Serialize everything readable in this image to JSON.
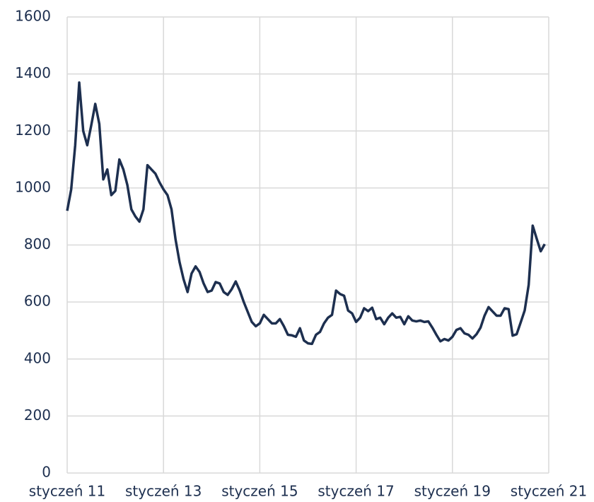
{
  "chart_data": {
    "type": "line",
    "categories": [
      "styczeń 11",
      null,
      null,
      null,
      null,
      null,
      null,
      null,
      null,
      null,
      null,
      null,
      null,
      null,
      null,
      null,
      null,
      null,
      null,
      null,
      null,
      null,
      null,
      null,
      "styczeń 13",
      null,
      null,
      null,
      null,
      null,
      null,
      null,
      null,
      null,
      null,
      null,
      null,
      null,
      null,
      null,
      null,
      null,
      null,
      null,
      null,
      null,
      null,
      null,
      "styczeń 15",
      null,
      null,
      null,
      null,
      null,
      null,
      null,
      null,
      null,
      null,
      null,
      null,
      null,
      null,
      null,
      null,
      null,
      null,
      null,
      null,
      null,
      null,
      null,
      "styczeń 17",
      null,
      null,
      null,
      null,
      null,
      null,
      null,
      null,
      null,
      null,
      null,
      null,
      null,
      null,
      null,
      null,
      null,
      null,
      null,
      null,
      null,
      null,
      null,
      "styczeń 19",
      null,
      null,
      null,
      null,
      null,
      null,
      null,
      null,
      null,
      null,
      null,
      null,
      null,
      null,
      null,
      null,
      null,
      null,
      null,
      null,
      null,
      null,
      null,
      "styczeń 21"
    ],
    "values": [
      920,
      995,
      1150,
      1370,
      1200,
      1150,
      1220,
      1295,
      1225,
      1030,
      1065,
      975,
      990,
      1100,
      1065,
      1010,
      925,
      900,
      882,
      925,
      1080,
      1065,
      1050,
      1020,
      995,
      975,
      925,
      820,
      740,
      680,
      635,
      700,
      725,
      705,
      665,
      635,
      640,
      670,
      665,
      635,
      625,
      645,
      672,
      640,
      600,
      565,
      530,
      515,
      525,
      555,
      540,
      525,
      525,
      540,
      515,
      485,
      483,
      478,
      508,
      465,
      455,
      453,
      485,
      495,
      525,
      545,
      555,
      640,
      628,
      622,
      570,
      560,
      530,
      545,
      578,
      568,
      580,
      540,
      545,
      522,
      545,
      560,
      545,
      548,
      522,
      550,
      535,
      532,
      535,
      530,
      532,
      510,
      485,
      462,
      470,
      465,
      478,
      502,
      508,
      490,
      485,
      472,
      487,
      510,
      552,
      582,
      567,
      552,
      552,
      578,
      575,
      482,
      487,
      528,
      570,
      660,
      868,
      822,
      778,
      803,
      null
    ],
    "color": "#1d2f4f",
    "ylim": [
      0,
      1600
    ],
    "yticks": [
      0,
      200,
      400,
      600,
      800,
      1000,
      1200,
      1400,
      1600
    ],
    "grid": true
  }
}
